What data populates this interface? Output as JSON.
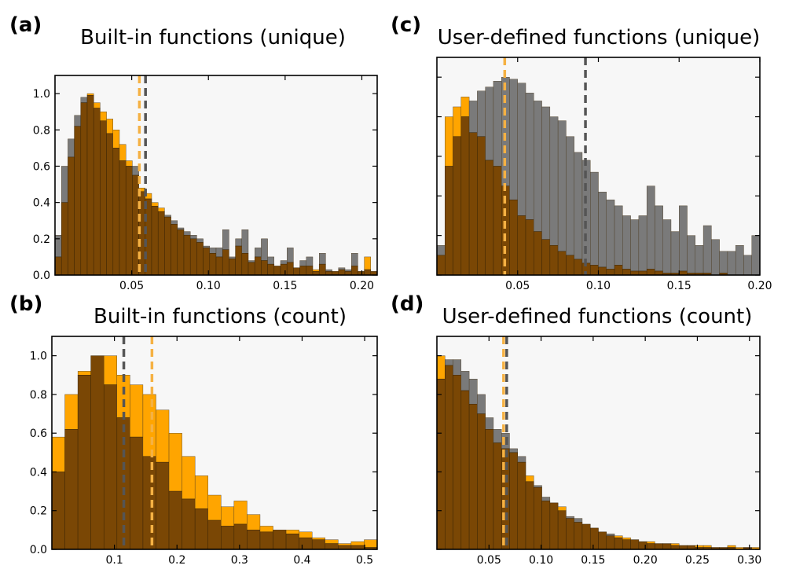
{
  "colors": {
    "gray": "#7a7a7a",
    "orange": "#ffa500",
    "overlap": "#7a4705",
    "plot_background": "#f7f7f7",
    "gray_median_line": "#555555",
    "orange_median_line": "#f5b143"
  },
  "chart_data": [
    {
      "panel": "(a)",
      "title": "Built-in functions (unique)",
      "type": "bar",
      "xlim": [
        0,
        0.21
      ],
      "ylim": [
        0,
        1.1
      ],
      "xticks": [
        0.05,
        0.1,
        0.15,
        0.2
      ],
      "xtick_labels": [
        "0.05",
        "0.10",
        "0.15",
        "0.20"
      ],
      "yticks": [
        0,
        0.2,
        0.4,
        0.6,
        0.8,
        1.0
      ],
      "ytick_labels": [
        "0.0",
        "0.2",
        "0.4",
        "0.6",
        "0.8",
        "1.0"
      ],
      "show_yticklabels": true,
      "bins": 50,
      "series": [
        {
          "color": "gray",
          "values": [
            0.22,
            0.6,
            0.75,
            0.88,
            0.98,
            0.99,
            0.92,
            0.85,
            0.78,
            0.7,
            0.63,
            0.6,
            0.6,
            0.46,
            0.42,
            0.38,
            0.35,
            0.33,
            0.3,
            0.26,
            0.24,
            0.22,
            0.2,
            0.16,
            0.15,
            0.15,
            0.25,
            0.1,
            0.2,
            0.25,
            0.08,
            0.15,
            0.2,
            0.1,
            0.05,
            0.08,
            0.15,
            0.04,
            0.08,
            0.1,
            0.02,
            0.12,
            0.03,
            0.02,
            0.04,
            0.03,
            0.12,
            0.02,
            0.03,
            0.02
          ]
        },
        {
          "color": "orange",
          "values": [
            0.1,
            0.4,
            0.65,
            0.82,
            0.95,
            1.0,
            0.95,
            0.9,
            0.86,
            0.8,
            0.72,
            0.63,
            0.55,
            0.48,
            0.45,
            0.4,
            0.37,
            0.32,
            0.28,
            0.25,
            0.22,
            0.2,
            0.18,
            0.15,
            0.12,
            0.1,
            0.14,
            0.09,
            0.16,
            0.12,
            0.07,
            0.1,
            0.08,
            0.06,
            0.05,
            0.06,
            0.07,
            0.04,
            0.05,
            0.05,
            0.03,
            0.06,
            0.02,
            0.02,
            0.03,
            0.02,
            0.05,
            0.02,
            0.1,
            0.02
          ]
        }
      ],
      "medians": [
        {
          "color": "orange",
          "x": 0.055
        },
        {
          "color": "gray",
          "x": 0.059
        }
      ]
    },
    {
      "panel": "(c)",
      "title": "User-defined functions (unique)",
      "type": "bar",
      "xlim": [
        0,
        0.2
      ],
      "ylim": [
        0,
        1.1
      ],
      "xticks": [
        0.05,
        0.1,
        0.15,
        0.2
      ],
      "xtick_labels": [
        "0.05",
        "0.10",
        "0.15",
        "0.20"
      ],
      "yticks": [
        0,
        0.2,
        0.4,
        0.6,
        0.8,
        1.0
      ],
      "ytick_labels": [],
      "show_yticklabels": false,
      "bins": 40,
      "series": [
        {
          "color": "gray",
          "values": [
            0.15,
            0.55,
            0.7,
            0.8,
            0.88,
            0.93,
            0.95,
            0.98,
            1.0,
            0.99,
            0.97,
            0.92,
            0.88,
            0.85,
            0.8,
            0.78,
            0.7,
            0.62,
            0.58,
            0.52,
            0.42,
            0.38,
            0.35,
            0.3,
            0.28,
            0.3,
            0.45,
            0.35,
            0.28,
            0.22,
            0.35,
            0.2,
            0.15,
            0.25,
            0.18,
            0.12,
            0.12,
            0.15,
            0.1,
            0.2
          ]
        },
        {
          "color": "orange",
          "values": [
            0.1,
            0.8,
            0.85,
            0.9,
            0.72,
            0.7,
            0.58,
            0.55,
            0.45,
            0.38,
            0.3,
            0.28,
            0.22,
            0.18,
            0.15,
            0.12,
            0.1,
            0.08,
            0.06,
            0.05,
            0.04,
            0.03,
            0.05,
            0.03,
            0.02,
            0.02,
            0.03,
            0.02,
            0.01,
            0.01,
            0.02,
            0.01,
            0.01,
            0.01,
            0.0,
            0.01,
            0.0,
            0.0,
            0.0,
            0.0
          ]
        }
      ],
      "medians": [
        {
          "color": "orange",
          "x": 0.042
        },
        {
          "color": "gray",
          "x": 0.092
        }
      ]
    },
    {
      "panel": "(b)",
      "title": "Built-in functions (count)",
      "type": "bar",
      "xlim": [
        0,
        0.52
      ],
      "ylim": [
        0,
        1.1
      ],
      "xticks": [
        0.1,
        0.2,
        0.3,
        0.4,
        0.5
      ],
      "xtick_labels": [
        "0.1",
        "0.2",
        "0.3",
        "0.4",
        "0.5"
      ],
      "yticks": [
        0,
        0.2,
        0.4,
        0.6,
        0.8,
        1.0
      ],
      "ytick_labels": [
        "0.0",
        "0.2",
        "0.4",
        "0.6",
        "0.8",
        "1.0"
      ],
      "show_yticklabels": true,
      "bins": 25,
      "series": [
        {
          "color": "gray",
          "values": [
            0.4,
            0.62,
            0.9,
            1.0,
            0.85,
            0.68,
            0.58,
            0.48,
            0.45,
            0.3,
            0.26,
            0.21,
            0.15,
            0.12,
            0.13,
            0.1,
            0.09,
            0.1,
            0.08,
            0.06,
            0.05,
            0.03,
            0.02,
            0.02,
            0.01
          ]
        },
        {
          "color": "orange",
          "values": [
            0.58,
            0.8,
            0.92,
            1.0,
            1.0,
            0.9,
            0.85,
            0.8,
            0.72,
            0.6,
            0.48,
            0.38,
            0.28,
            0.22,
            0.25,
            0.18,
            0.12,
            0.1,
            0.1,
            0.09,
            0.06,
            0.05,
            0.03,
            0.04,
            0.05
          ]
        }
      ],
      "medians": [
        {
          "color": "gray",
          "x": 0.115
        },
        {
          "color": "orange",
          "x": 0.16
        }
      ]
    },
    {
      "panel": "(d)",
      "title": "User-defined functions (count)",
      "type": "bar",
      "xlim": [
        0,
        0.31
      ],
      "ylim": [
        0,
        1.1
      ],
      "xticks": [
        0.05,
        0.1,
        0.15,
        0.2,
        0.25,
        0.3
      ],
      "xtick_labels": [
        "0.05",
        "0.10",
        "0.15",
        "0.20",
        "0.25",
        "0.30"
      ],
      "yticks": [
        0,
        0.2,
        0.4,
        0.6,
        0.8,
        1.0
      ],
      "ytick_labels": [],
      "show_yticklabels": false,
      "bins": 40,
      "series": [
        {
          "color": "gray",
          "values": [
            0.88,
            0.98,
            0.98,
            0.92,
            0.88,
            0.8,
            0.68,
            0.62,
            0.6,
            0.52,
            0.48,
            0.35,
            0.33,
            0.27,
            0.24,
            0.2,
            0.17,
            0.16,
            0.13,
            0.11,
            0.09,
            0.08,
            0.06,
            0.05,
            0.05,
            0.04,
            0.03,
            0.03,
            0.03,
            0.02,
            0.02,
            0.02,
            0.01,
            0.01,
            0.01,
            0.01,
            0.01,
            0.0,
            0.01,
            0.0
          ]
        },
        {
          "color": "orange",
          "values": [
            1.0,
            0.95,
            0.9,
            0.82,
            0.75,
            0.7,
            0.62,
            0.55,
            0.52,
            0.5,
            0.45,
            0.38,
            0.32,
            0.25,
            0.24,
            0.22,
            0.16,
            0.14,
            0.13,
            0.11,
            0.09,
            0.07,
            0.07,
            0.06,
            0.05,
            0.04,
            0.04,
            0.03,
            0.03,
            0.03,
            0.02,
            0.02,
            0.02,
            0.02,
            0.01,
            0.01,
            0.02,
            0.01,
            0.01,
            0.01
          ]
        }
      ],
      "medians": [
        {
          "color": "orange",
          "x": 0.064
        },
        {
          "color": "gray",
          "x": 0.067
        }
      ]
    }
  ]
}
